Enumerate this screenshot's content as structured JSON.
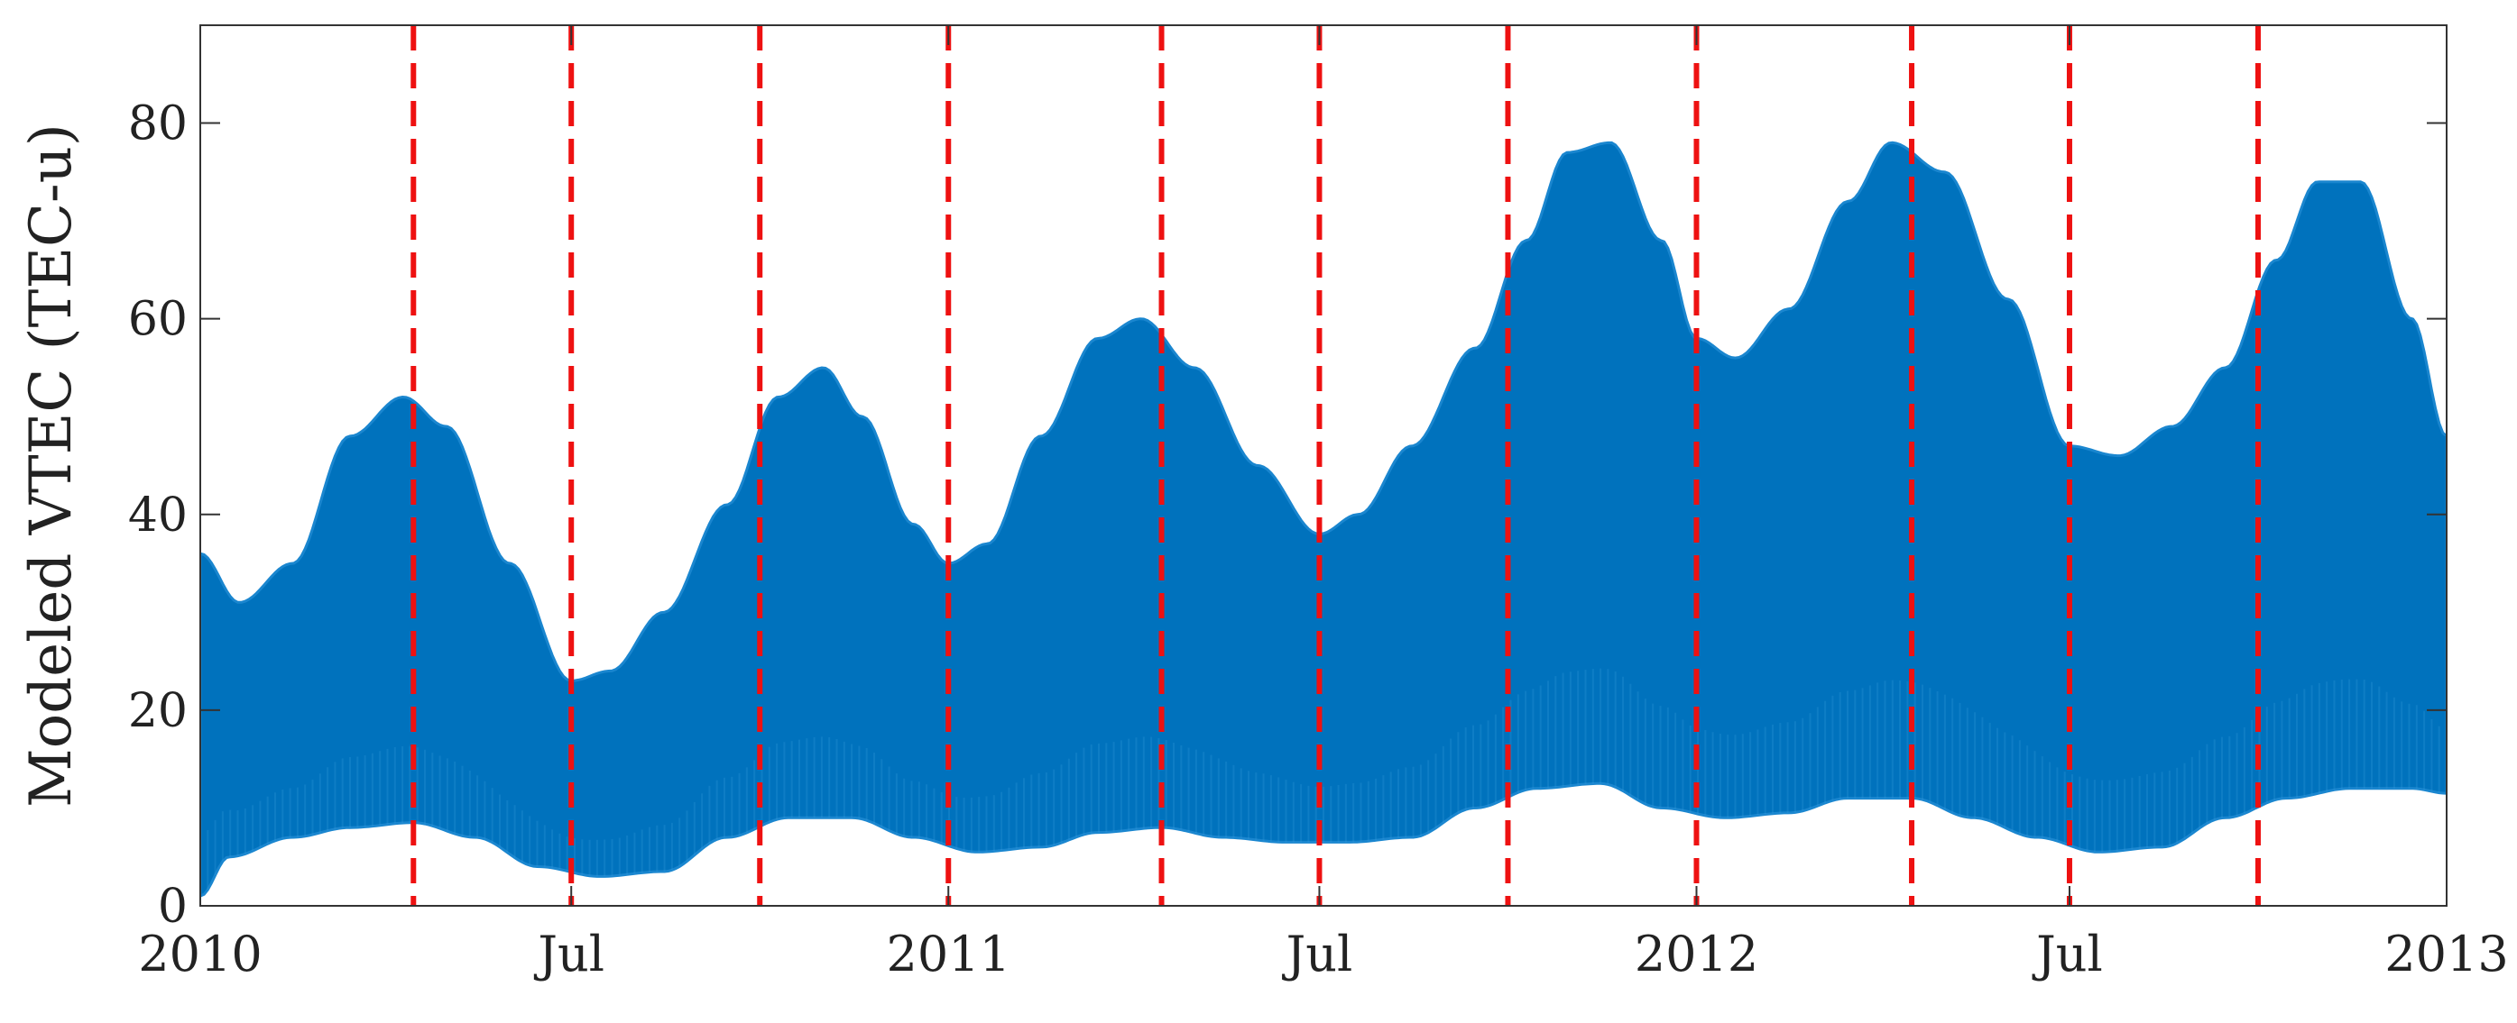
{
  "chart_data": {
    "type": "area",
    "title": "",
    "xlabel": "",
    "ylabel": "Modeled VTEC (TEC-u)",
    "xlim": [
      "2010-01-01",
      "2013-01-01"
    ],
    "ylim": [
      0,
      90
    ],
    "x_ticks": [
      {
        "date": "2010-01-01",
        "label": "2010"
      },
      {
        "date": "2010-07-01",
        "label": "Jul"
      },
      {
        "date": "2011-01-01",
        "label": "2011"
      },
      {
        "date": "2011-07-01",
        "label": "Jul"
      },
      {
        "date": "2012-01-01",
        "label": "2012"
      },
      {
        "date": "2012-07-01",
        "label": "Jul"
      },
      {
        "date": "2013-01-01",
        "label": "2013"
      }
    ],
    "y_ticks": [
      0,
      20,
      40,
      60,
      80
    ],
    "grid": false,
    "fill_color": "#0072bd",
    "upper_envelope": {
      "x": [
        "2010-01-01",
        "2010-01-20",
        "2010-02-15",
        "2010-03-15",
        "2010-04-10",
        "2010-05-01",
        "2010-06-01",
        "2010-07-01",
        "2010-07-20",
        "2010-08-15",
        "2010-09-15",
        "2010-10-10",
        "2010-11-01",
        "2010-11-20",
        "2010-12-15",
        "2011-01-01",
        "2011-01-20",
        "2011-02-15",
        "2011-03-15",
        "2011-04-05",
        "2011-05-01",
        "2011-06-01",
        "2011-07-01",
        "2011-07-20",
        "2011-08-15",
        "2011-09-15",
        "2011-10-10",
        "2011-10-30",
        "2011-11-20",
        "2011-12-15",
        "2012-01-01",
        "2012-01-20",
        "2012-02-15",
        "2012-03-15",
        "2012-04-05",
        "2012-05-01",
        "2012-06-01",
        "2012-07-01",
        "2012-07-25",
        "2012-08-20",
        "2012-09-15",
        "2012-10-10",
        "2012-10-30",
        "2012-11-20",
        "2012-12-15",
        "2013-01-01"
      ],
      "values": [
        36,
        31,
        35,
        48,
        52,
        49,
        35,
        23,
        24,
        30,
        41,
        52,
        55,
        50,
        39,
        35,
        37,
        48,
        58,
        60,
        55,
        45,
        38,
        40,
        47,
        57,
        68,
        77,
        78,
        68,
        58,
        56,
        61,
        72,
        78,
        75,
        62,
        47,
        46,
        49,
        55,
        66,
        74,
        74,
        60,
        48
      ]
    },
    "lower_envelope": {
      "x": [
        "2010-01-01",
        "2010-01-15",
        "2010-02-15",
        "2010-03-15",
        "2010-04-15",
        "2010-05-15",
        "2010-06-15",
        "2010-07-15",
        "2010-08-15",
        "2010-09-15",
        "2010-10-15",
        "2010-11-15",
        "2010-12-15",
        "2011-01-15",
        "2011-02-15",
        "2011-03-15",
        "2011-04-15",
        "2011-05-15",
        "2011-06-15",
        "2011-07-15",
        "2011-08-15",
        "2011-09-15",
        "2011-10-15",
        "2011-11-15",
        "2011-12-15",
        "2012-01-15",
        "2012-02-15",
        "2012-03-15",
        "2012-04-15",
        "2012-05-15",
        "2012-06-15",
        "2012-07-15",
        "2012-08-15",
        "2012-09-15",
        "2012-10-15",
        "2012-11-15",
        "2012-12-15",
        "2013-01-01"
      ],
      "values": [
        1,
        5,
        7,
        8,
        8.5,
        7,
        4,
        3,
        3.5,
        7,
        9,
        9,
        7,
        5.5,
        6,
        7.5,
        8,
        7,
        6.5,
        6.5,
        7,
        10,
        12,
        12.5,
        10,
        9,
        9.5,
        11,
        11,
        9,
        7,
        5.5,
        6,
        9,
        11,
        12,
        12,
        11.5
      ]
    },
    "markers": {
      "style": "dashed",
      "color": "#ee1111",
      "dates": [
        "2010-04-15",
        "2010-07-01",
        "2010-10-01",
        "2011-01-01",
        "2011-04-15",
        "2011-07-01",
        "2011-10-01",
        "2012-01-01",
        "2012-04-15",
        "2012-07-01",
        "2012-10-01"
      ]
    }
  }
}
